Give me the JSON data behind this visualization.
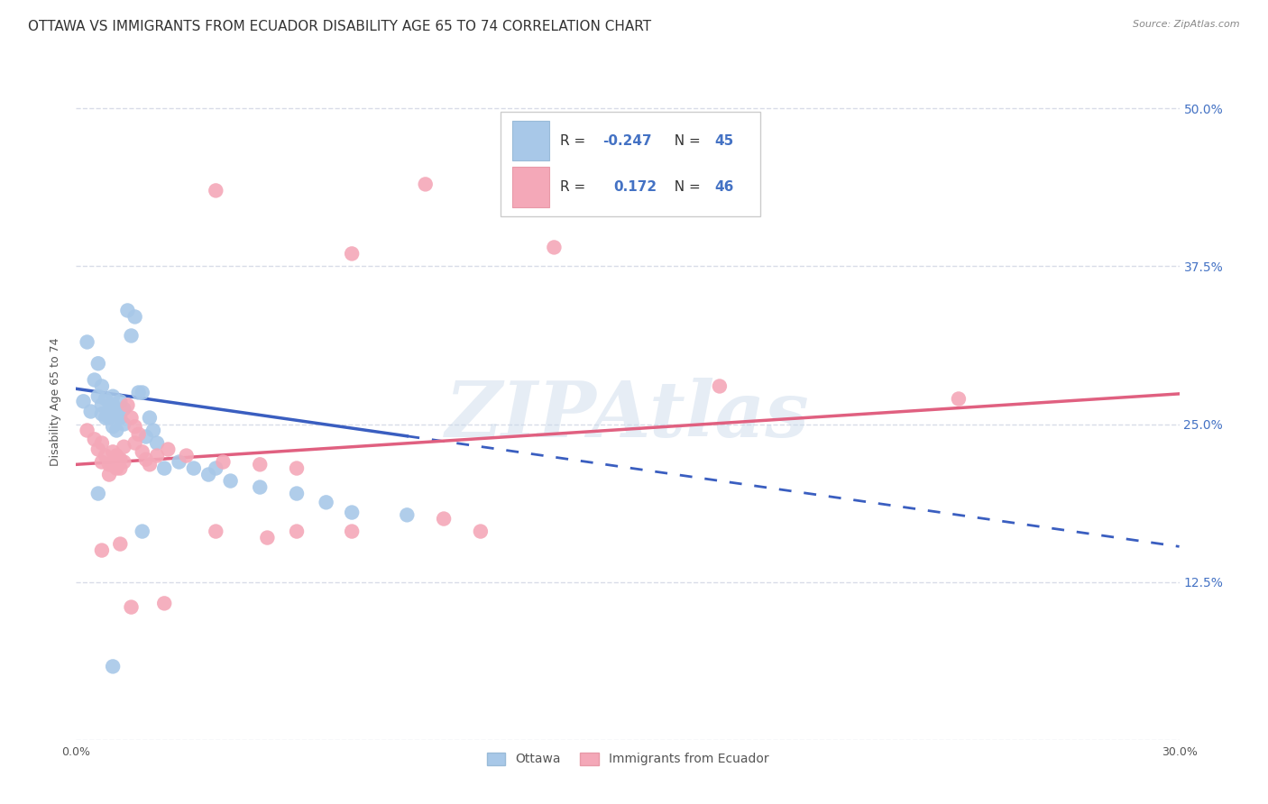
{
  "title": "OTTAWA VS IMMIGRANTS FROM ECUADOR DISABILITY AGE 65 TO 74 CORRELATION CHART",
  "source": "Source: ZipAtlas.com",
  "ylabel": "Disability Age 65 to 74",
  "ytick_labels": [
    "",
    "12.5%",
    "25.0%",
    "37.5%",
    "50.0%"
  ],
  "ytick_values": [
    0.0,
    0.125,
    0.25,
    0.375,
    0.5
  ],
  "xmin": 0.0,
  "xmax": 0.3,
  "ymin": 0.0,
  "ymax": 0.535,
  "ottawa_color": "#a8c8e8",
  "ecuador_color": "#f4a8b8",
  "ottawa_line_color": "#3a5ec0",
  "ecuador_line_color": "#e06080",
  "watermark": "ZIPAtlas",
  "ottawa_scatter": [
    [
      0.002,
      0.268
    ],
    [
      0.003,
      0.315
    ],
    [
      0.004,
      0.26
    ],
    [
      0.005,
      0.285
    ],
    [
      0.006,
      0.298
    ],
    [
      0.006,
      0.272
    ],
    [
      0.007,
      0.28
    ],
    [
      0.007,
      0.258
    ],
    [
      0.007,
      0.265
    ],
    [
      0.008,
      0.27
    ],
    [
      0.008,
      0.255
    ],
    [
      0.009,
      0.262
    ],
    [
      0.009,
      0.255
    ],
    [
      0.01,
      0.265
    ],
    [
      0.01,
      0.272
    ],
    [
      0.01,
      0.248
    ],
    [
      0.011,
      0.258
    ],
    [
      0.011,
      0.245
    ],
    [
      0.012,
      0.268
    ],
    [
      0.012,
      0.255
    ],
    [
      0.013,
      0.262
    ],
    [
      0.013,
      0.25
    ],
    [
      0.014,
      0.34
    ],
    [
      0.015,
      0.32
    ],
    [
      0.016,
      0.335
    ],
    [
      0.017,
      0.275
    ],
    [
      0.018,
      0.275
    ],
    [
      0.019,
      0.24
    ],
    [
      0.02,
      0.255
    ],
    [
      0.021,
      0.245
    ],
    [
      0.022,
      0.235
    ],
    [
      0.024,
      0.215
    ],
    [
      0.028,
      0.22
    ],
    [
      0.032,
      0.215
    ],
    [
      0.036,
      0.21
    ],
    [
      0.038,
      0.215
    ],
    [
      0.042,
      0.205
    ],
    [
      0.05,
      0.2
    ],
    [
      0.06,
      0.195
    ],
    [
      0.068,
      0.188
    ],
    [
      0.075,
      0.18
    ],
    [
      0.09,
      0.178
    ],
    [
      0.006,
      0.195
    ],
    [
      0.01,
      0.058
    ],
    [
      0.018,
      0.165
    ]
  ],
  "ecuador_scatter": [
    [
      0.003,
      0.245
    ],
    [
      0.005,
      0.238
    ],
    [
      0.006,
      0.23
    ],
    [
      0.007,
      0.235
    ],
    [
      0.007,
      0.22
    ],
    [
      0.008,
      0.225
    ],
    [
      0.009,
      0.218
    ],
    [
      0.009,
      0.21
    ],
    [
      0.01,
      0.228
    ],
    [
      0.01,
      0.218
    ],
    [
      0.011,
      0.225
    ],
    [
      0.011,
      0.215
    ],
    [
      0.012,
      0.222
    ],
    [
      0.012,
      0.215
    ],
    [
      0.013,
      0.232
    ],
    [
      0.013,
      0.22
    ],
    [
      0.014,
      0.265
    ],
    [
      0.015,
      0.255
    ],
    [
      0.016,
      0.248
    ],
    [
      0.016,
      0.235
    ],
    [
      0.017,
      0.242
    ],
    [
      0.018,
      0.228
    ],
    [
      0.019,
      0.222
    ],
    [
      0.02,
      0.218
    ],
    [
      0.022,
      0.225
    ],
    [
      0.025,
      0.23
    ],
    [
      0.03,
      0.225
    ],
    [
      0.04,
      0.22
    ],
    [
      0.05,
      0.218
    ],
    [
      0.06,
      0.215
    ],
    [
      0.007,
      0.15
    ],
    [
      0.012,
      0.155
    ],
    [
      0.015,
      0.105
    ],
    [
      0.024,
      0.108
    ],
    [
      0.038,
      0.165
    ],
    [
      0.052,
      0.16
    ],
    [
      0.06,
      0.165
    ],
    [
      0.075,
      0.165
    ],
    [
      0.1,
      0.175
    ],
    [
      0.11,
      0.165
    ],
    [
      0.038,
      0.435
    ],
    [
      0.075,
      0.385
    ],
    [
      0.095,
      0.44
    ],
    [
      0.13,
      0.39
    ],
    [
      0.175,
      0.28
    ],
    [
      0.24,
      0.27
    ]
  ],
  "background_color": "#ffffff",
  "grid_color": "#d8dce8",
  "title_fontsize": 11,
  "axis_fontsize": 9,
  "legend_R1": "-0.247",
  "legend_N1": "45",
  "legend_R2": "0.172",
  "legend_N2": "46"
}
